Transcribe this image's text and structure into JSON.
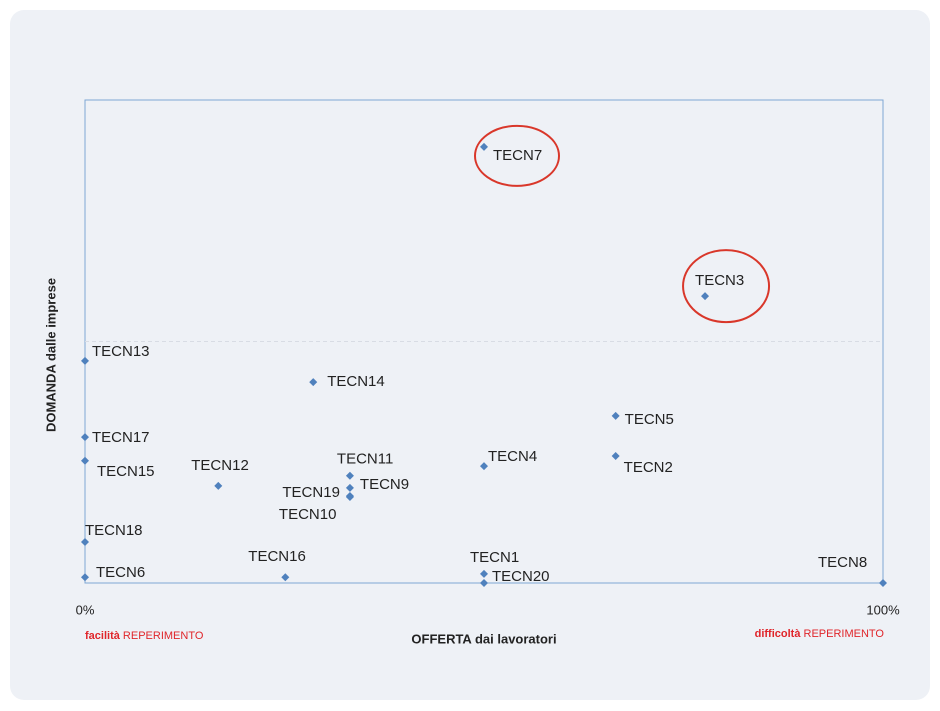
{
  "chart_data": {
    "type": "scatter",
    "x_label": "OFFERTA dai lavoratori",
    "y_label": "DOMANDA dalle imprese",
    "xlim": [
      0,
      100
    ],
    "ylim": [
      0,
      100
    ],
    "xticks": [
      {
        "value": 0,
        "label": "0%"
      },
      {
        "value": 100,
        "label": "100%"
      }
    ],
    "hline": 50,
    "color": "#4f81bd",
    "highlight_color": "#d9372a",
    "annotations": {
      "left": {
        "bold": "facilità",
        "text": "REPERIMENTO"
      },
      "right": {
        "bold": "difficoltà",
        "text": "REPERIMENTO"
      }
    },
    "points": [
      {
        "label": "TECN7",
        "x": 50,
        "y": 90.3,
        "highlight": true
      },
      {
        "label": "TECN3",
        "x": 77.7,
        "y": 59.4,
        "highlight": true
      },
      {
        "label": "TECN13",
        "x": 0,
        "y": 46.0
      },
      {
        "label": "TECN14",
        "x": 28.6,
        "y": 41.6
      },
      {
        "label": "TECN5",
        "x": 66.5,
        "y": 34.6
      },
      {
        "label": "TECN17",
        "x": 0,
        "y": 30.2
      },
      {
        "label": "TECN15",
        "x": 0,
        "y": 25.3
      },
      {
        "label": "TECN4",
        "x": 50,
        "y": 24.2
      },
      {
        "label": "TECN2",
        "x": 66.5,
        "y": 26.3
      },
      {
        "label": "TECN12",
        "x": 16.7,
        "y": 20.1
      },
      {
        "label": "TECN11",
        "x": 33.2,
        "y": 22.2
      },
      {
        "label": "TECN9",
        "x": 33.2,
        "y": 19.7
      },
      {
        "label": "TECN19",
        "x": 33.2,
        "y": 18.0
      },
      {
        "label": "TECN10",
        "x": 33.2,
        "y": 17.8
      },
      {
        "label": "TECN18",
        "x": 0,
        "y": 8.5
      },
      {
        "label": "TECN6",
        "x": 0,
        "y": 1.2
      },
      {
        "label": "TECN16",
        "x": 25.1,
        "y": 1.2
      },
      {
        "label": "TECN1",
        "x": 50,
        "y": 1.9
      },
      {
        "label": "TECN20",
        "x": 50,
        "y": 0
      },
      {
        "label": "TECN8",
        "x": 100,
        "y": 0
      }
    ]
  }
}
